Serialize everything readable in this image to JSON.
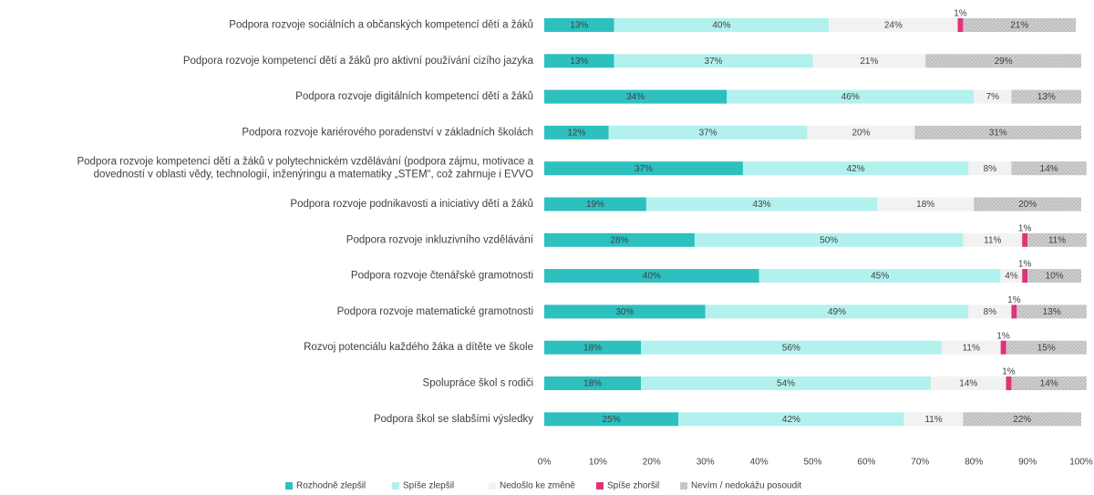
{
  "chart_data": {
    "type": "bar",
    "orientation": "horizontal-stacked-100",
    "title": "",
    "xlabel": "",
    "ylabel": "",
    "xlim": [
      0,
      100
    ],
    "x_ticks": [
      "0%",
      "10%",
      "20%",
      "30%",
      "40%",
      "50%",
      "60%",
      "70%",
      "80%",
      "90%",
      "100%"
    ],
    "grid": false,
    "legend_position": "bottom-left",
    "categories": [
      [
        "Podpora rozvoje sociálních a občanských kompetencí dětí a žáků"
      ],
      [
        "Podpora rozvoje kompetencí dětí a žáků pro aktivní používání cizího jazyka"
      ],
      [
        "Podpora rozvoje digitálních kompetencí dětí a žáků"
      ],
      [
        "Podpora rozvoje kariérového poradenství v základních školách"
      ],
      [
        "Podpora rozvoje kompetencí dětí a žáků v polytechnickém vzdělávání (podpora zájmu, motivace a",
        "dovedností v oblasti vědy, technologií, inženýringu a matematiky „STEM“, což zahrnuje i EVVO"
      ],
      [
        "Podpora rozvoje podnikavosti a iniciativy dětí a žáků"
      ],
      [
        "Podpora rozvoje inkluzivního vzdělávání"
      ],
      [
        "Podpora rozvoje čtenářské gramotnosti"
      ],
      [
        "Podpora rozvoje matematické gramotnosti"
      ],
      [
        "Rozvoj potenciálu každého žáka a dítěte ve škole"
      ],
      [
        "Spolupráce škol s rodiči"
      ],
      [
        "Podpora škol se slabšími výsledky"
      ]
    ],
    "series": [
      {
        "name": "Rozhodně zlepšil",
        "color": "#2ebfbf",
        "pattern": "solid",
        "values": [
          13,
          13,
          34,
          12,
          37,
          19,
          28,
          40,
          30,
          18,
          18,
          25
        ],
        "labels": [
          "13%",
          "13%",
          "34%",
          "12%",
          "37%",
          "19%",
          "28%",
          "40%",
          "30%",
          "18%",
          "18%",
          "25%"
        ]
      },
      {
        "name": "Spíše zlepšil",
        "color": "#b2f1ee",
        "pattern": "solid",
        "values": [
          40,
          37,
          46,
          37,
          42,
          43,
          50,
          45,
          49,
          56,
          54,
          42
        ],
        "labels": [
          "40%",
          "37%",
          "46%",
          "37%",
          "42%",
          "43%",
          "50%",
          "45%",
          "49%",
          "56%",
          "54%",
          "42%"
        ]
      },
      {
        "name": "Nedošlo ke změně",
        "color": "#f2f2f2",
        "pattern": "solid",
        "values": [
          24,
          21,
          7,
          20,
          8,
          18,
          11,
          4,
          8,
          11,
          14,
          11
        ],
        "labels": [
          "24%",
          "21%",
          "7%",
          "20%",
          "8%",
          "18%",
          "11%",
          "4%",
          "8%",
          "11%",
          "14%",
          "11%"
        ]
      },
      {
        "name": "Spíše zhoršil",
        "color": "#e0327a",
        "pattern": "solid",
        "values": [
          1,
          0,
          0,
          0,
          0,
          0,
          1,
          1,
          1,
          1,
          1,
          0
        ],
        "labels": [
          "1%",
          "",
          "",
          "",
          "",
          "",
          "1%",
          "1%",
          "1%",
          "1%",
          "1%",
          ""
        ]
      },
      {
        "name": "Nevím / nedokážu posoudit",
        "color": "#c8c8c8",
        "pattern": "hatched",
        "values": [
          21,
          29,
          13,
          31,
          14,
          20,
          11,
          10,
          13,
          15,
          14,
          22
        ],
        "labels": [
          "21%",
          "29%",
          "13%",
          "31%",
          "14%",
          "20%",
          "11%",
          "10%",
          "13%",
          "15%",
          "14%",
          "22%"
        ]
      }
    ]
  }
}
